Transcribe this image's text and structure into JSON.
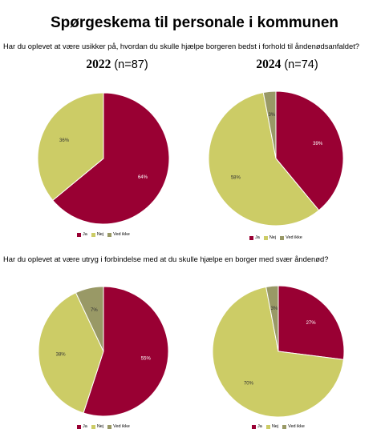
{
  "page": {
    "title": "Spørgeskema til personale i kommunen",
    "question1": "Har du oplevet at være usikker på, hvordan du skulle hjælpe borgeren bedst i forhold til åndenødsanfaldet?",
    "question2": "Har du oplevet at være utryg i forbindelse med at du skulle hjælpe en borger med svær åndenød?",
    "year_left": "2022",
    "n_left": "(n=87)",
    "year_right": "2024",
    "n_right": "(n=74)"
  },
  "colors": {
    "ja": "#990033",
    "nej": "#cccc66",
    "ved_ikke": "#999966"
  },
  "chart_data": [
    {
      "type": "pie",
      "question": 1,
      "year": "2022",
      "categories": [
        "Ja",
        "Nej",
        "Ved ikke"
      ],
      "values": [
        64,
        36,
        0
      ],
      "labels": [
        "64%",
        "36%",
        ""
      ],
      "legend": [
        "Ja",
        "Nej",
        "Ved ikke"
      ]
    },
    {
      "type": "pie",
      "question": 1,
      "year": "2024",
      "categories": [
        "Ja",
        "Nej",
        "Ved ikke"
      ],
      "values": [
        39,
        58,
        3
      ],
      "labels": [
        "39%",
        "58%",
        "3%"
      ],
      "legend": [
        "Ja",
        "Nej",
        "Ved ikke"
      ]
    },
    {
      "type": "pie",
      "question": 2,
      "year": "2022",
      "categories": [
        "Ja",
        "Nej",
        "Ved ikke"
      ],
      "values": [
        55,
        38,
        7
      ],
      "labels": [
        "55%",
        "38%",
        "7%"
      ],
      "legend": [
        "Ja",
        "Nej",
        "Ved ikke"
      ]
    },
    {
      "type": "pie",
      "question": 2,
      "year": "2024",
      "categories": [
        "Ja",
        "Nej",
        "Ved ikke"
      ],
      "values": [
        27,
        70,
        3
      ],
      "labels": [
        "27%",
        "70%",
        "3%"
      ],
      "legend": [
        "Ja",
        "Nej",
        "Ved ikke"
      ]
    }
  ]
}
